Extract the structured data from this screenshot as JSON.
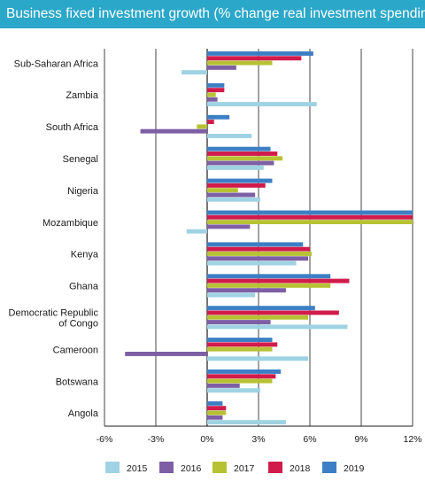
{
  "chart_data": {
    "type": "bar",
    "orientation": "horizontal",
    "title": "Business fixed investment growth (% change real investment spending)",
    "categories": [
      "Sub-Saharan Africa",
      "Zambia",
      "South Africa",
      "Senegal",
      "Nigeria",
      "Mozambique",
      "Kenya",
      "Ghana",
      "Democratic Republic of Congo",
      "Cameroon",
      "Botswana",
      "Angola"
    ],
    "category_display": [
      [
        "Sub-Saharan Africa"
      ],
      [
        "Zambia"
      ],
      [
        "South Africa"
      ],
      [
        "Senegal"
      ],
      [
        "Nigeria"
      ],
      [
        "Mozambique"
      ],
      [
        "Kenya"
      ],
      [
        "Ghana"
      ],
      [
        "Democratic Republic",
        "of Congo"
      ],
      [
        "Cameroon"
      ],
      [
        "Botswana"
      ],
      [
        "Angola"
      ]
    ],
    "series": [
      {
        "name": "2015",
        "color": "#9fd3e3",
        "values": [
          -1.5,
          6.4,
          2.6,
          3.3,
          3.1,
          -1.2,
          5.2,
          2.8,
          8.2,
          5.9,
          3.1,
          4.6
        ]
      },
      {
        "name": "2016",
        "color": "#7e5fa5",
        "values": [
          1.7,
          0.6,
          -3.9,
          3.9,
          2.8,
          2.5,
          5.9,
          4.6,
          3.7,
          -4.8,
          1.9,
          0.9
        ]
      },
      {
        "name": "2017",
        "color": "#b7c233",
        "values": [
          3.8,
          0.5,
          -0.6,
          4.4,
          1.8,
          12.0,
          6.1,
          7.2,
          5.9,
          3.8,
          3.8,
          1.1
        ]
      },
      {
        "name": "2018",
        "color": "#d11b4b",
        "values": [
          5.5,
          1.0,
          0.4,
          4.1,
          3.4,
          12.0,
          6.0,
          8.3,
          7.7,
          4.1,
          4.0,
          1.1
        ]
      },
      {
        "name": "2019",
        "color": "#3d7fc4",
        "values": [
          6.2,
          1.0,
          1.3,
          3.7,
          3.8,
          12.0,
          5.6,
          7.2,
          6.3,
          3.8,
          4.3,
          0.9
        ]
      }
    ],
    "xlim": [
      -6,
      12
    ],
    "xticks": [
      -6,
      -3,
      0,
      3,
      6,
      9,
      12
    ],
    "xtick_labels": [
      "-6%",
      "-3%",
      "0%",
      "3%",
      "6%",
      "9%",
      "12%"
    ],
    "xlabel": "",
    "ylabel": "",
    "grid": true,
    "legend_placement": "bottom"
  }
}
